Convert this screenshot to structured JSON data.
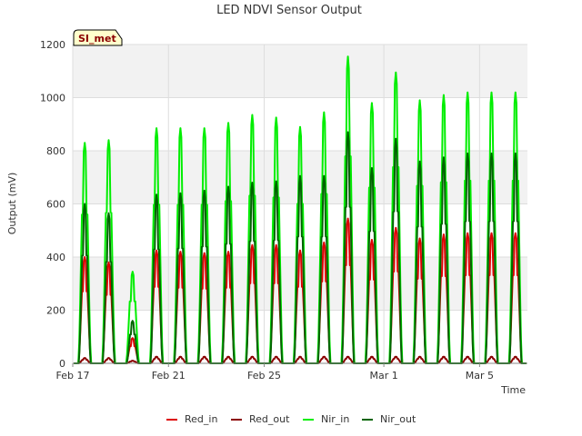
{
  "chart_data": {
    "type": "line",
    "title": "LED NDVI Sensor Output",
    "xlabel": "Time",
    "ylabel": "Output (mV)",
    "site_label": "SI_met",
    "ylim": [
      0,
      1200
    ],
    "yticks": [
      0,
      200,
      400,
      600,
      800,
      1000,
      1200
    ],
    "xlim": [
      "2024-02-17",
      "2024-03-07"
    ],
    "xticks": [
      {
        "date": "2024-02-17",
        "label": "Feb 17"
      },
      {
        "date": "2024-02-21",
        "label": "Feb 21"
      },
      {
        "date": "2024-02-25",
        "label": "Feb 25"
      },
      {
        "date": "2024-03-01",
        "label": "Mar 1"
      },
      {
        "date": "2024-03-05",
        "label": "Mar 5"
      }
    ],
    "grid": true,
    "legend_position": "bottom",
    "daily_peak_dates": [
      "2024-02-17",
      "2024-02-18",
      "2024-02-19",
      "2024-02-20",
      "2024-02-21",
      "2024-02-22",
      "2024-02-23",
      "2024-02-24",
      "2024-02-25",
      "2024-02-26",
      "2024-02-27",
      "2024-02-28",
      "2024-02-29",
      "2024-03-01",
      "2024-03-02",
      "2024-03-03",
      "2024-03-04",
      "2024-03-05",
      "2024-03-06"
    ],
    "series": [
      {
        "name": "Red_in",
        "color": "#dd0000",
        "daily_peaks": [
          400,
          380,
          95,
          425,
          420,
          415,
          420,
          445,
          445,
          425,
          455,
          545,
          465,
          510,
          470,
          485,
          490,
          490,
          490
        ]
      },
      {
        "name": "Red_out",
        "color": "#8b0000",
        "daily_peaks": [
          20,
          20,
          10,
          25,
          25,
          25,
          25,
          25,
          25,
          25,
          25,
          25,
          25,
          25,
          25,
          25,
          25,
          25,
          25
        ]
      },
      {
        "name": "Nir_in",
        "color": "#00ee00",
        "daily_peaks": [
          830,
          840,
          345,
          885,
          885,
          885,
          905,
          935,
          925,
          890,
          945,
          1155,
          980,
          1095,
          990,
          1010,
          1020,
          1020,
          1020
        ]
      },
      {
        "name": "Nir_out",
        "color": "#006400",
        "daily_peaks": [
          600,
          565,
          160,
          635,
          640,
          650,
          665,
          680,
          685,
          705,
          705,
          870,
          735,
          845,
          760,
          775,
          790,
          790,
          790
        ]
      }
    ]
  }
}
